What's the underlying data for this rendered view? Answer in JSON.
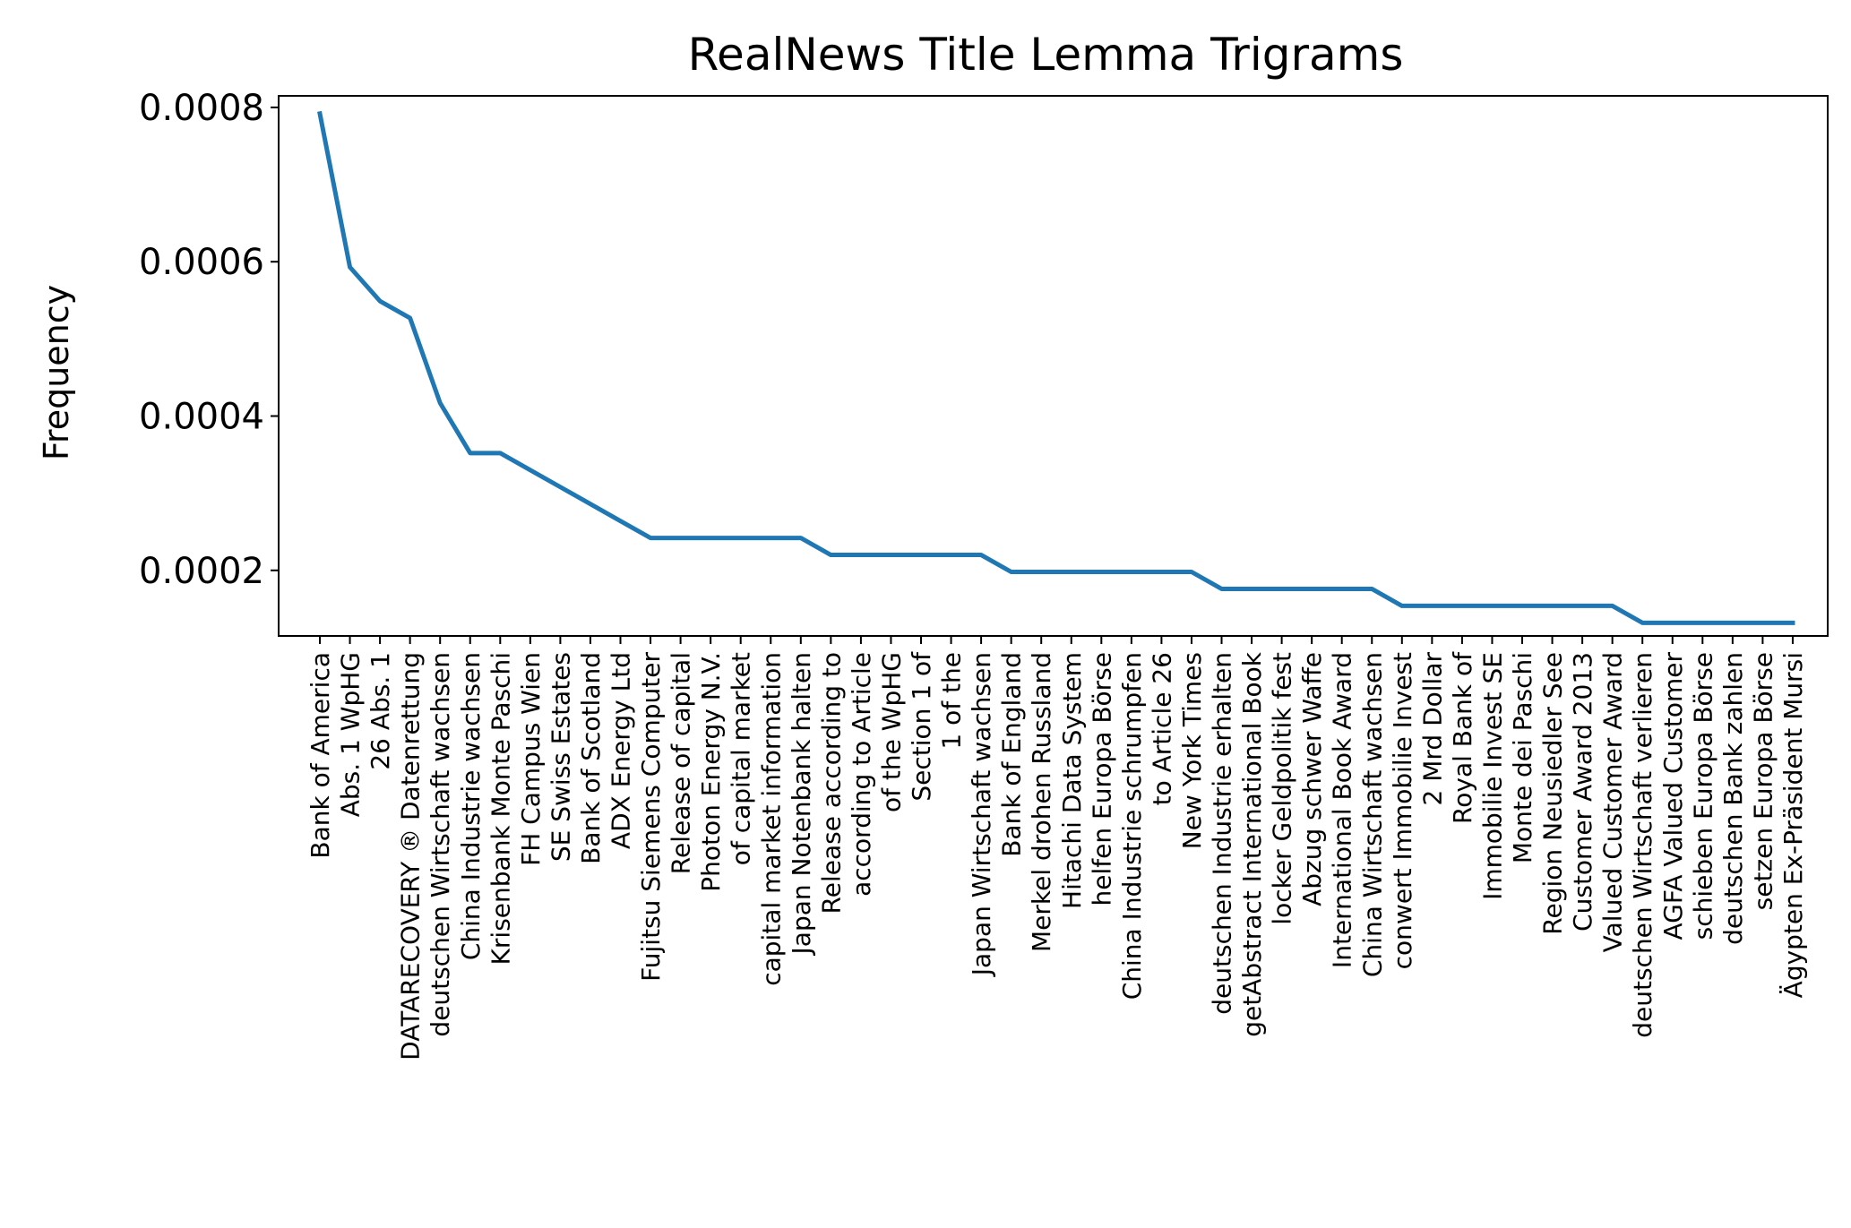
{
  "chart_data": {
    "type": "line",
    "title": "RealNews Title Lemma Trigrams",
    "xlabel": "",
    "ylabel": "Frequency",
    "ylim": [
      0.000115,
      0.000815
    ],
    "yticks": [
      0.0002,
      0.0004,
      0.0006,
      0.0008
    ],
    "ytick_labels": [
      "0.0002",
      "0.0004",
      "0.0006",
      "0.0008"
    ],
    "grid": false,
    "line_color": "#1f77b4",
    "categories": [
      "Bank of America",
      "Abs. 1 WpHG",
      "26 Abs. 1",
      "DATARECOVERY ® Datenrettung",
      "deutschen Wirtschaft wachsen",
      "China Industrie wachsen",
      "Krisenbank Monte Paschi",
      "FH Campus Wien",
      "SE Swiss Estates",
      "Bank of Scotland",
      "ADX Energy Ltd",
      "Fujitsu Siemens Computer",
      "Release of capital",
      "Photon Energy N.V.",
      "of capital market",
      "capital market information",
      "Japan Notenbank halten",
      "Release according to",
      "according to Article",
      "of the WpHG",
      "Section 1 of",
      "1 of the",
      "Japan Wirtschaft wachsen",
      "Bank of England",
      "Merkel drohen Russland",
      "Hitachi Data System",
      "helfen Europa Börse",
      "China Industrie schrumpfen",
      "to Article 26",
      "New York Times",
      "deutschen Industrie erhalten",
      "getAbstract International Book",
      "locker Geldpolitik fest",
      "Abzug schwer Waffe",
      "International Book Award",
      "China Wirtschaft wachsen",
      "conwert Immobilie Invest",
      "2 Mrd Dollar",
      "Royal Bank of",
      "Immobilie Invest SE",
      "Monte dei Paschi",
      "Region Neusiedler See",
      "Customer Award 2013",
      "Valued Customer Award",
      "deutschen Wirtschaft verlieren",
      "AGFA Valued Customer",
      "schieben Europa Börse",
      "deutschen Bank zahlen",
      "setzen Europa Börse",
      "Ägypten Ex-Präsident Mursi"
    ],
    "series": [
      {
        "values": [
          0.000792,
          0.000593,
          0.000549,
          0.000527,
          0.000417,
          0.000352,
          0.000352,
          0.00033,
          0.000308,
          0.000286,
          0.000264,
          0.000242,
          0.000242,
          0.000242,
          0.000242,
          0.000242,
          0.000242,
          0.00022,
          0.00022,
          0.00022,
          0.00022,
          0.00022,
          0.00022,
          0.000198,
          0.000198,
          0.000198,
          0.000198,
          0.000198,
          0.000198,
          0.000198,
          0.000176,
          0.000176,
          0.000176,
          0.000176,
          0.000176,
          0.000176,
          0.000154,
          0.000154,
          0.000154,
          0.000154,
          0.000154,
          0.000154,
          0.000154,
          0.000154,
          0.000132,
          0.000132,
          0.000132,
          0.000132,
          0.000132,
          0.000132
        ]
      }
    ]
  }
}
